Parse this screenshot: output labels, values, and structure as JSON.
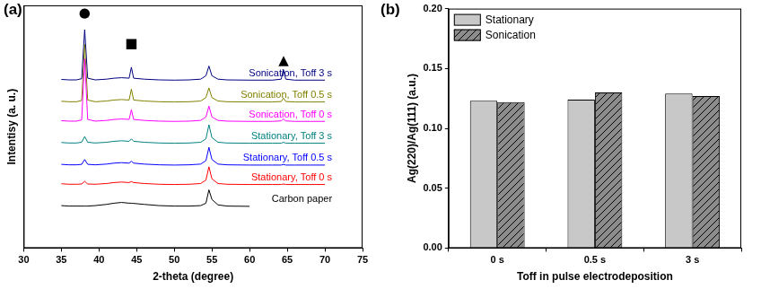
{
  "chart_data": [
    {
      "type": "line",
      "title": "(a)",
      "x_label": "2-theta (degree)",
      "y_label": "Intentisy (a. u.)",
      "x": [
        35,
        36,
        37,
        37.7,
        38.1,
        38.5,
        39.5,
        41,
        42,
        43,
        44,
        44.3,
        44.6,
        46,
        48,
        50,
        52,
        53.5,
        54.2,
        54.6,
        55,
        55.8,
        57,
        60,
        63,
        64.2,
        64.5,
        64.8,
        66,
        68,
        70
      ],
      "series": [
        {
          "name": "Carbon paper",
          "color": "#000000",
          "values": [
            17.5,
            17.3,
            17.3,
            17.3,
            17.3,
            17.3,
            17.5,
            18,
            18.5,
            18.8,
            18.5,
            18.5,
            18.4,
            18,
            17.5,
            17.3,
            17.3,
            17.5,
            18.5,
            24,
            20,
            17.8,
            17.3,
            17.2,
            null,
            null,
            null,
            null,
            null,
            null,
            null
          ]
        },
        {
          "name": "Stationary, Toff 0 s",
          "color": "#ff0000",
          "values": [
            26.5,
            26.3,
            26.3,
            26.4,
            27.5,
            26.4,
            26.3,
            26.6,
            27,
            27.2,
            27,
            27.4,
            27,
            26.6,
            26.3,
            26.2,
            26.3,
            26.6,
            28,
            33.5,
            28.5,
            26.6,
            26.3,
            26.2,
            26.2,
            26.2,
            26.4,
            26.2,
            26.2,
            26.2,
            26.2
          ]
        },
        {
          "name": "Stationary, Toff 0.5 s",
          "color": "#0000ff",
          "values": [
            34.5,
            34.3,
            34.3,
            34.5,
            36.5,
            34.5,
            34.3,
            34.6,
            35,
            35.2,
            35,
            35.8,
            35,
            34.6,
            34.3,
            34.2,
            34.3,
            34.6,
            36,
            41.5,
            36.5,
            34.6,
            34.3,
            34.2,
            34.2,
            34.2,
            34.5,
            34.2,
            34.2,
            34.2,
            34.2
          ]
        },
        {
          "name": "Stationary, Toff 3 s",
          "color": "#008080",
          "values": [
            43.5,
            43.3,
            43.3,
            43.6,
            46,
            43.6,
            43.3,
            43.6,
            44,
            44.2,
            44,
            45,
            44,
            43.6,
            43.3,
            43.2,
            43.3,
            43.6,
            45,
            50.8,
            45.5,
            43.6,
            43.3,
            43.2,
            43.2,
            43.2,
            43.6,
            43.2,
            43.2,
            43.2,
            43.2
          ]
        },
        {
          "name": "Sonication, Toff 0 s",
          "color": "#ff00ff",
          "values": [
            52.5,
            52.3,
            52.3,
            52.8,
            78,
            53,
            52.3,
            52.6,
            53,
            53.2,
            53,
            57,
            53,
            52.6,
            52.3,
            52.2,
            52.3,
            52.6,
            54,
            58.5,
            54,
            52.6,
            52.3,
            52.2,
            52.2,
            52.4,
            53.2,
            52.4,
            52.2,
            52.2,
            52.2
          ]
        },
        {
          "name": "Sonication, Toff 0.5 s",
          "color": "#808000",
          "values": [
            60.5,
            60.3,
            60.3,
            60.8,
            84,
            61,
            60.3,
            60.6,
            61,
            61.2,
            61,
            65.5,
            61,
            60.6,
            60.3,
            60.2,
            60.3,
            60.6,
            62,
            66,
            62,
            60.6,
            60.3,
            60.2,
            60.2,
            60.4,
            61.8,
            60.4,
            60.2,
            60.2,
            60.2
          ]
        },
        {
          "name": "Sonication, Toff 3 s",
          "color": "#000080",
          "values": [
            69.5,
            69.3,
            69.3,
            69.8,
            90,
            70,
            69.3,
            69.6,
            70,
            70.2,
            70,
            74.5,
            70,
            69.6,
            69.3,
            69.2,
            69.3,
            69.6,
            71,
            75,
            71,
            69.6,
            69.3,
            69.2,
            69.2,
            69.6,
            73.5,
            69.6,
            69.2,
            69.2,
            69.2
          ]
        }
      ],
      "xlim": [
        30,
        75
      ],
      "xticks": [
        30,
        35,
        40,
        45,
        50,
        55,
        60,
        65,
        70,
        75
      ],
      "ylim": [
        0,
        100
      ],
      "grid": false,
      "tick_labels": "x",
      "legend": "inline",
      "annotations": [
        {
          "text": "●",
          "x": 38.1,
          "y": 96.5
        },
        {
          "text": "■",
          "x": 44.3,
          "y": 84
        },
        {
          "text": "▲",
          "x": 64.5,
          "y": 77
        }
      ]
    },
    {
      "type": "bar",
      "title": "(b)",
      "x_label": "Toff in pulse electrodeposition",
      "y_label": "Ag(220)/Ag(111) (a.u.)",
      "categories": [
        "0 s",
        "0.5 s",
        "3 s"
      ],
      "series": [
        {
          "name": "Stationary",
          "color": "#c8c8c8",
          "marker": "solid",
          "values": [
            0.123,
            0.124,
            0.129
          ]
        },
        {
          "name": "Sonication",
          "color": "#8c8c8c",
          "marker": "hatched",
          "values": [
            0.122,
            0.13,
            0.127
          ]
        }
      ],
      "ylim": [
        0,
        0.2
      ],
      "yticks": [
        {
          "value": 0,
          "label": "0.00"
        },
        {
          "value": 0.05,
          "label": "0.05"
        },
        {
          "value": 0.1,
          "label": "0.10"
        },
        {
          "value": 0.15,
          "label": "0.15"
        },
        {
          "value": 0.2,
          "label": "0.20"
        }
      ],
      "grid": false,
      "legend": "upper left"
    }
  ]
}
